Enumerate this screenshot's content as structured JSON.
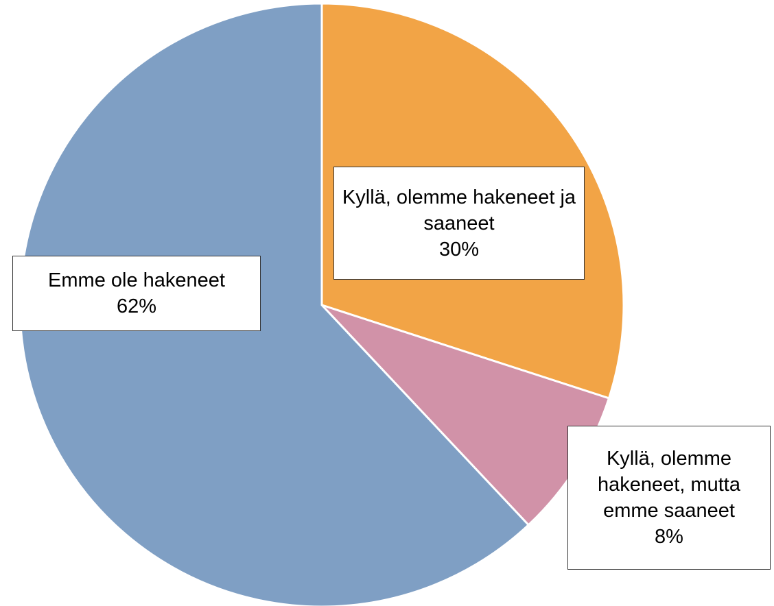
{
  "chart_data": {
    "type": "pie",
    "categories": [
      "Kyllä, olemme hakeneet ja saaneet",
      "Kyllä, olemme hakeneet, mutta emme saaneet",
      "Emme ole hakeneet"
    ],
    "values": [
      30,
      8,
      62
    ],
    "value_labels": [
      "30%",
      "8%",
      "62%"
    ],
    "colors": [
      "#f2a446",
      "#d192a8",
      "#7f9fc4"
    ]
  }
}
